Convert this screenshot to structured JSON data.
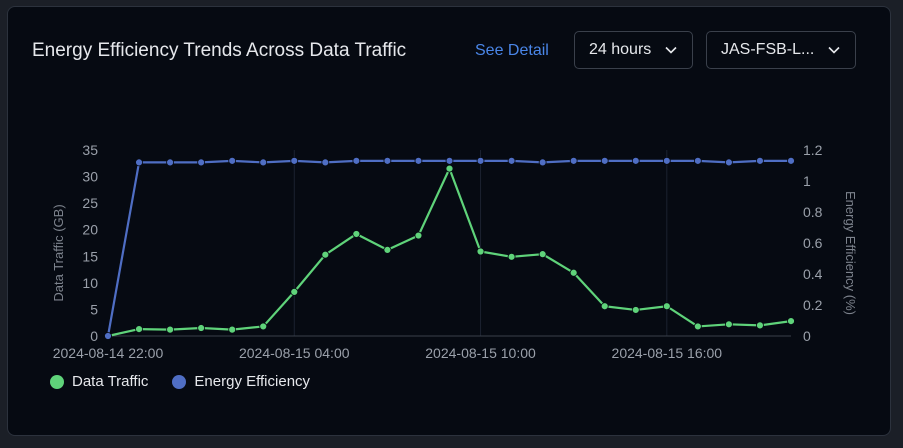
{
  "header": {
    "title": "Energy Efficiency Trends Across Data Traffic",
    "see_detail": "See Detail",
    "time_range": "24 hours",
    "device": "JAS-FSB-L..."
  },
  "colors": {
    "traffic": "#5fd37a",
    "efficiency": "#4f6ec4",
    "link": "#4a86e8"
  },
  "chart_data": {
    "type": "line",
    "x": [
      "2024-08-14 22:00",
      "2024-08-14 23:00",
      "2024-08-15 00:00",
      "2024-08-15 01:00",
      "2024-08-15 02:00",
      "2024-08-15 03:00",
      "2024-08-15 04:00",
      "2024-08-15 05:00",
      "2024-08-15 06:00",
      "2024-08-15 07:00",
      "2024-08-15 08:00",
      "2024-08-15 09:00",
      "2024-08-15 10:00",
      "2024-08-15 11:00",
      "2024-08-15 12:00",
      "2024-08-15 13:00",
      "2024-08-15 14:00",
      "2024-08-15 15:00",
      "2024-08-15 16:00",
      "2024-08-15 17:00",
      "2024-08-15 18:00",
      "2024-08-15 19:00",
      "2024-08-15 20:00"
    ],
    "x_tick_labels": [
      "2024-08-14 22:00",
      "2024-08-15 04:00",
      "2024-08-15 10:00",
      "2024-08-15 16:00"
    ],
    "series": [
      {
        "name": "Data Traffic",
        "axis": "left",
        "values": [
          0,
          1.3,
          1.2,
          1.5,
          1.2,
          1.8,
          8.3,
          15.3,
          19.2,
          16.2,
          18.9,
          31.5,
          15.9,
          14.9,
          15.4,
          11.9,
          5.6,
          4.9,
          5.6,
          1.8,
          2.2,
          2.0,
          2.8
        ]
      },
      {
        "name": "Energy Efficiency",
        "axis": "right",
        "values": [
          0,
          1.12,
          1.12,
          1.12,
          1.13,
          1.12,
          1.13,
          1.12,
          1.13,
          1.13,
          1.13,
          1.13,
          1.13,
          1.13,
          1.12,
          1.13,
          1.13,
          1.13,
          1.13,
          1.13,
          1.12,
          1.13,
          1.13
        ]
      }
    ],
    "ylabel_left": "Data Traffic (GB)",
    "ylabel_right": "Energy Efficiency (%)",
    "ylim_left": [
      0,
      35
    ],
    "yticks_left": [
      "0",
      "5",
      "10",
      "15",
      "20",
      "25",
      "30",
      "35"
    ],
    "ylim_right": [
      0,
      1.2
    ],
    "yticks_right": [
      "0",
      "0.2",
      "0.4",
      "0.6",
      "0.8",
      "1",
      "1.2"
    ],
    "legend": [
      "Data Traffic",
      "Energy Efficiency"
    ],
    "legend_position": "bottom-left",
    "grid": "vertical"
  }
}
